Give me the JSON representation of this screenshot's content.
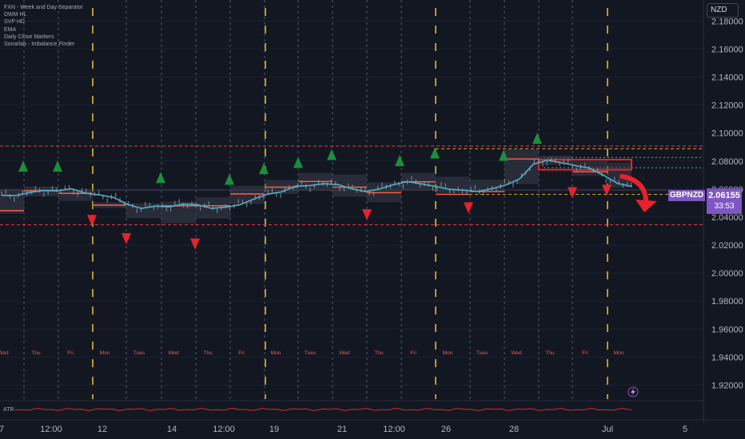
{
  "indicators": [
    "FXN - Week and Day Separator",
    "DWM HL",
    "SVP HD",
    "EMA",
    "Daily Close Markers",
    "Sonarlab - Imbalance Finder"
  ],
  "currency": "NZD",
  "symbol": "GBPNZD",
  "last_price": "2.06155",
  "countdown": "33:53",
  "atr_label": "ATR",
  "colors": {
    "background": "#131722",
    "ema": "#4fb3c9",
    "up_marker": "#1b8f3a",
    "down_marker": "#e8222c",
    "week_separator": "#b89a2e",
    "day_separator": "#5d6a85",
    "level_line": "#e04040",
    "range_line": "#c8a22c",
    "price_tag": "#7e57c2"
  },
  "chart_data": {
    "type": "line",
    "title": "",
    "xlabel": "",
    "ylabel": "",
    "ylim": [
      1.91,
      2.195
    ],
    "y_ticks": [
      1.92,
      1.94,
      1.96,
      1.98,
      2.0,
      2.02,
      2.04,
      2.06,
      2.08,
      2.1,
      2.12,
      2.14,
      2.16,
      2.18
    ],
    "y_tick_labels": [
      "1.92000",
      "1.94000",
      "1.96000",
      "1.98000",
      "2.00000",
      "2.02000",
      "2.04000",
      "2.06000",
      "2.08000",
      "2.10000",
      "2.12000",
      "2.14000",
      "2.16000",
      "2.18000"
    ],
    "x_ticks": [
      "7",
      "12:00",
      "12",
      "14",
      "12:00",
      "19",
      "21",
      "12:00",
      "26",
      "28",
      "Jul",
      "5"
    ],
    "day_labels": [
      "Wed",
      "Thu",
      "Fri",
      "Mon",
      "Tues",
      "Wed",
      "Thu",
      "Fri",
      "Mon",
      "Tues",
      "Wed",
      "Thu",
      "Fri",
      "Mon",
      "Tues",
      "Wed",
      "Thu",
      "Fri",
      "Mon"
    ],
    "horizontal_levels": [
      2.0907,
      2.0345
    ],
    "range_levels": [
      2.0888,
      2.0562
    ],
    "series": [
      {
        "name": "EMA",
        "values": [
          2.0555,
          2.0553,
          2.0575,
          2.059,
          2.0588,
          2.0602,
          2.057,
          2.0558,
          2.054,
          2.049,
          2.0462,
          2.0478,
          2.0473,
          2.0493,
          2.0488,
          2.0462,
          2.0471,
          2.0487,
          2.0528,
          2.0563,
          2.058,
          2.062,
          2.0624,
          2.0638,
          2.0632,
          2.0602,
          2.0582,
          2.0601,
          2.0631,
          2.0653,
          2.0637,
          2.0619,
          2.0598,
          2.0592,
          2.0582,
          2.0602,
          2.0628,
          2.0672,
          2.0778,
          2.0806,
          2.0788,
          2.0767,
          2.0749,
          2.0698,
          2.064,
          2.0619
        ]
      }
    ],
    "up_markers": [
      2.0758,
      2.0758,
      2.0677,
      2.0665,
      2.0741,
      2.0785,
      2.0841,
      2.0798,
      2.0852,
      2.0836,
      2.0957
    ],
    "down_markers": [
      2.0381,
      2.0251,
      2.0213,
      2.0422,
      2.0471,
      2.0579,
      2.0596
    ]
  }
}
